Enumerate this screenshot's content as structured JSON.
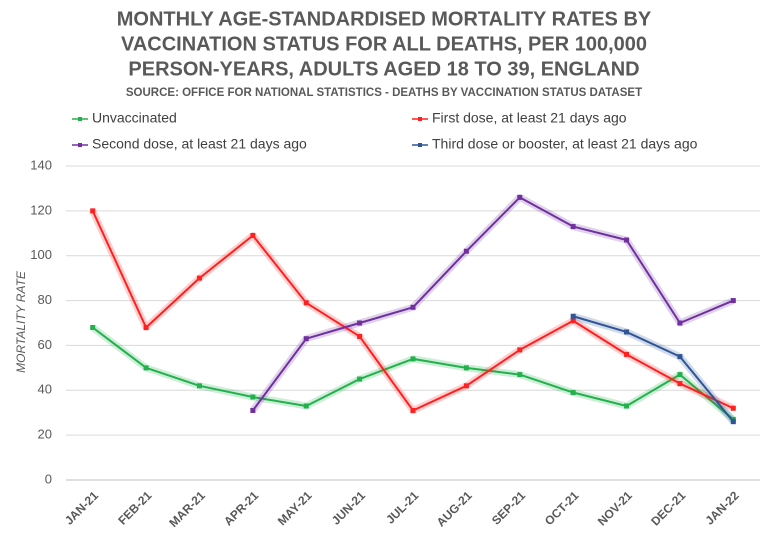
{
  "chart_data": {
    "type": "line",
    "title": [
      "MONTHLY AGE-STANDARDISED MORTALITY RATES BY",
      "VACCINATION STATUS FOR ALL DEATHS, PER 100,000",
      "PERSON-YEARS, ADULTS AGED 18 TO 39, ENGLAND"
    ],
    "subtitle": "SOURCE: OFFICE FOR NATIONAL STATISTICS - DEATHS BY VACCINATION STATUS DATASET",
    "y_label": "MORTALITY RATE",
    "categories": [
      "JAN-21",
      "FEB-21",
      "MAR-21",
      "APR-21",
      "MAY-21",
      "JUN-21",
      "JUL-21",
      "AUG-21",
      "SEP-21",
      "OCT-21",
      "NOV-21",
      "DEC-21",
      "JAN-22"
    ],
    "series": [
      {
        "name": "Unvaccinated",
        "color": "#22b14c",
        "values": [
          68,
          50,
          42,
          37,
          33,
          45,
          54,
          50,
          47,
          39,
          33,
          47,
          27
        ]
      },
      {
        "name": "First dose, at least 21 days ago",
        "color": "#ff2020",
        "values": [
          120,
          68,
          90,
          109,
          79,
          64,
          31,
          42,
          58,
          71,
          56,
          43,
          32
        ]
      },
      {
        "name": "Second dose, at least 21 days ago",
        "color": "#7030a0",
        "values": [
          null,
          null,
          null,
          31,
          63,
          70,
          77,
          102,
          126,
          113,
          107,
          70,
          80
        ]
      },
      {
        "name": "Third dose or booster, at least 21 days ago",
        "color": "#2f5597",
        "values": [
          null,
          null,
          null,
          null,
          null,
          null,
          null,
          null,
          null,
          73,
          66,
          55,
          26
        ]
      }
    ],
    "ylim": [
      0,
      140
    ],
    "yticks": [
      0,
      20,
      40,
      60,
      80,
      100,
      120,
      140
    ],
    "grid": true
  }
}
